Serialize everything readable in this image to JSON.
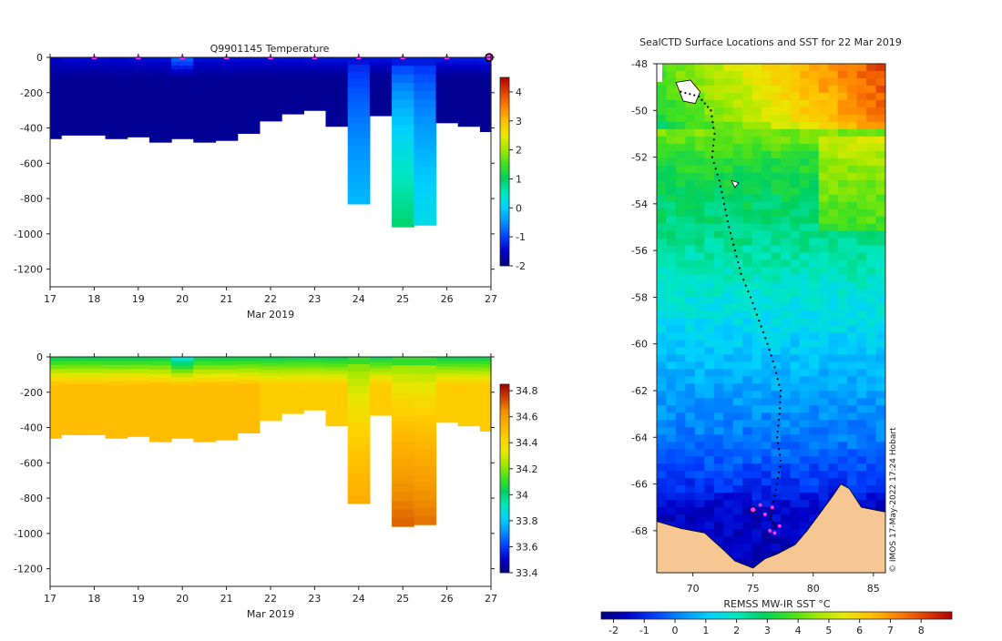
{
  "colors": {
    "land": "#f7c793",
    "no_data": "#ffffff",
    "track": "#000000",
    "highlight": "#ff33ff",
    "temp_colormap": [
      "#00007f",
      "#0000c8",
      "#0040ff",
      "#0090ff",
      "#00d0ff",
      "#00e8c0",
      "#00d060",
      "#40e020",
      "#a0e800",
      "#e8e800",
      "#ffc000",
      "#ff8000",
      "#e04000",
      "#b00000"
    ],
    "sal_colormap": [
      "#00007f",
      "#0000c8",
      "#0040ff",
      "#0090ff",
      "#00d0ff",
      "#00e8c0",
      "#00d060",
      "#40e020",
      "#a0e800",
      "#e8e800",
      "#ffd000",
      "#ffb000",
      "#f09000",
      "#d04000",
      "#a00000"
    ]
  },
  "chart_data": [
    {
      "id": "temperature-profile",
      "type": "heatmap",
      "title": "Q9901145  Temperature",
      "xlabel": "Mar 2019",
      "ylabel": "",
      "xlim": [
        17,
        27
      ],
      "ylim": [
        -1300,
        0
      ],
      "xticks": [
        "17",
        "18",
        "19",
        "20",
        "21",
        "22",
        "23",
        "24",
        "25",
        "26",
        "27"
      ],
      "yticks": [
        "0",
        "-200",
        "-400",
        "-600",
        "-800",
        "-1000",
        "-1200"
      ],
      "colorbar": {
        "min": -2,
        "max": 4.5,
        "ticks": [
          "-2",
          "-1",
          "0",
          "1",
          "2",
          "3",
          "4"
        ]
      },
      "surface_marker_days": [
        18,
        19,
        20,
        21,
        22,
        23,
        24,
        25,
        26,
        27
      ],
      "profiles": [
        {
          "day": 17.0,
          "depth": -460,
          "surf": -1.5,
          "deep": -1.85
        },
        {
          "day": 17.5,
          "depth": -440,
          "surf": -1.45,
          "deep": -1.85
        },
        {
          "day": 18.0,
          "depth": -440,
          "surf": -1.45,
          "deep": -1.85
        },
        {
          "day": 18.5,
          "depth": -460,
          "surf": -1.45,
          "deep": -1.85
        },
        {
          "day": 19.0,
          "depth": -450,
          "surf": -1.4,
          "deep": -1.85
        },
        {
          "day": 19.5,
          "depth": -480,
          "surf": -1.4,
          "deep": -1.85
        },
        {
          "day": 20.0,
          "depth": -460,
          "surf": -0.8,
          "deep": -1.85
        },
        {
          "day": 20.5,
          "depth": -480,
          "surf": -1.4,
          "deep": -1.85
        },
        {
          "day": 21.0,
          "depth": -470,
          "surf": -1.4,
          "deep": -1.85
        },
        {
          "day": 21.5,
          "depth": -430,
          "surf": -1.4,
          "deep": -1.85
        },
        {
          "day": 22.0,
          "depth": -360,
          "surf": -1.4,
          "deep": -1.85
        },
        {
          "day": 22.5,
          "depth": -320,
          "surf": -1.4,
          "deep": -1.85
        },
        {
          "day": 23.0,
          "depth": -300,
          "surf": -1.35,
          "deep": -1.85
        },
        {
          "day": 23.5,
          "depth": -390,
          "surf": -1.35,
          "deep": -1.85
        },
        {
          "day": 24.0,
          "depth": -830,
          "surf": -1.35,
          "deep": -0.2
        },
        {
          "day": 24.5,
          "depth": -330,
          "surf": -1.35,
          "deep": -1.85
        },
        {
          "day": 25.0,
          "depth": -960,
          "surf": -1.3,
          "deep": 0.9
        },
        {
          "day": 25.5,
          "depth": -950,
          "surf": -1.3,
          "deep": 0.2
        },
        {
          "day": 26.0,
          "depth": -370,
          "surf": -1.3,
          "deep": -1.85
        },
        {
          "day": 26.5,
          "depth": -390,
          "surf": -1.3,
          "deep": -1.85
        },
        {
          "day": 27.0,
          "depth": -420,
          "surf": -1.25,
          "deep": -1.85
        }
      ]
    },
    {
      "id": "salinity-profile",
      "type": "heatmap",
      "title": "",
      "xlabel": "Mar 2019",
      "ylabel": "",
      "xlim": [
        17,
        27
      ],
      "ylim": [
        -1300,
        0
      ],
      "xticks": [
        "17",
        "18",
        "19",
        "20",
        "21",
        "22",
        "23",
        "24",
        "25",
        "26",
        "27"
      ],
      "yticks": [
        "0",
        "-200",
        "-400",
        "-600",
        "-800",
        "-1000",
        "-1200"
      ],
      "colorbar": {
        "min": 33.4,
        "max": 34.85,
        "ticks": [
          "33.4",
          "33.6",
          "33.8",
          "34",
          "34.2",
          "34.4",
          "34.6",
          "34.8"
        ]
      },
      "profiles": [
        {
          "day": 17.0,
          "depth": -460,
          "surf": 34.05,
          "deep": 34.5
        },
        {
          "day": 17.5,
          "depth": -440,
          "surf": 34.05,
          "deep": 34.5
        },
        {
          "day": 18.0,
          "depth": -440,
          "surf": 34.05,
          "deep": 34.5
        },
        {
          "day": 18.5,
          "depth": -460,
          "surf": 34.05,
          "deep": 34.5
        },
        {
          "day": 19.0,
          "depth": -450,
          "surf": 34.05,
          "deep": 34.5
        },
        {
          "day": 19.5,
          "depth": -480,
          "surf": 34.05,
          "deep": 34.5
        },
        {
          "day": 20.0,
          "depth": -460,
          "surf": 33.9,
          "deep": 34.5
        },
        {
          "day": 20.5,
          "depth": -480,
          "surf": 34.05,
          "deep": 34.5
        },
        {
          "day": 21.0,
          "depth": -470,
          "surf": 34.05,
          "deep": 34.5
        },
        {
          "day": 21.5,
          "depth": -430,
          "surf": 34.05,
          "deep": 34.5
        },
        {
          "day": 22.0,
          "depth": -360,
          "surf": 34.05,
          "deep": 34.45
        },
        {
          "day": 22.5,
          "depth": -320,
          "surf": 34.05,
          "deep": 34.45
        },
        {
          "day": 23.0,
          "depth": -300,
          "surf": 34.05,
          "deep": 34.45
        },
        {
          "day": 23.5,
          "depth": -390,
          "surf": 34.05,
          "deep": 34.45
        },
        {
          "day": 24.0,
          "depth": -830,
          "surf": 34.1,
          "deep": 34.55
        },
        {
          "day": 24.5,
          "depth": -330,
          "surf": 34.05,
          "deep": 34.45
        },
        {
          "day": 25.0,
          "depth": -960,
          "surf": 34.1,
          "deep": 34.7
        },
        {
          "day": 25.5,
          "depth": -950,
          "surf": 34.1,
          "deep": 34.68
        },
        {
          "day": 26.0,
          "depth": -370,
          "surf": 34.05,
          "deep": 34.45
        },
        {
          "day": 26.5,
          "depth": -390,
          "surf": 34.05,
          "deep": 34.45
        },
        {
          "day": 27.0,
          "depth": -420,
          "surf": 34.05,
          "deep": 34.45
        }
      ]
    },
    {
      "id": "sst-map",
      "type": "heatmap",
      "title": "SealCTD Surface Locations and SST for 22 Mar 2019",
      "xlabel": "",
      "ylabel": "",
      "xlim": [
        67,
        86
      ],
      "ylim": [
        -69.8,
        -48
      ],
      "xticks": [
        "70",
        "75",
        "80",
        "85"
      ],
      "yticks": [
        "-48",
        "-50",
        "-52",
        "-54",
        "-56",
        "-58",
        "-60",
        "-62",
        "-64",
        "-66",
        "-68"
      ],
      "colorbar": {
        "label": "REMSS MW-IR SST °C",
        "min": -2.4,
        "max": 9,
        "ticks": [
          "-2",
          "-1",
          "0",
          "1",
          "2",
          "3",
          "4",
          "5",
          "6",
          "7",
          "8"
        ]
      },
      "credit": "© IMOS 17-May-2022 17:24 Hobart",
      "sst_by_latitude": [
        {
          "lat": -48,
          "sst": 5.5
        },
        {
          "lat": -50,
          "sst": 5.0
        },
        {
          "lat": -52,
          "sst": 3.5
        },
        {
          "lat": -54,
          "sst": 2.8
        },
        {
          "lat": -56,
          "sst": 2.3
        },
        {
          "lat": -58,
          "sst": 1.7
        },
        {
          "lat": -60,
          "sst": 1.1
        },
        {
          "lat": -62,
          "sst": 0.5
        },
        {
          "lat": -64,
          "sst": 0.0
        },
        {
          "lat": -66,
          "sst": -0.8
        },
        {
          "lat": -67,
          "sst": -1.5
        },
        {
          "lat": -69.8,
          "sst": -1.8
        }
      ],
      "track": [
        [
          69.0,
          -49.2
        ],
        [
          70.5,
          -49.4
        ],
        [
          71.5,
          -50.0
        ],
        [
          71.8,
          -51.0
        ],
        [
          71.6,
          -52.0
        ],
        [
          72.2,
          -53.0
        ],
        [
          72.6,
          -54.0
        ],
        [
          73.0,
          -55.0
        ],
        [
          73.5,
          -56.0
        ],
        [
          74.0,
          -57.0
        ],
        [
          74.8,
          -58.0
        ],
        [
          75.5,
          -59.0
        ],
        [
          76.2,
          -60.0
        ],
        [
          76.8,
          -61.0
        ],
        [
          77.3,
          -62.0
        ],
        [
          77.2,
          -63.0
        ],
        [
          77.0,
          -64.0
        ],
        [
          77.3,
          -65.0
        ],
        [
          77.0,
          -66.0
        ],
        [
          76.6,
          -67.0
        ],
        [
          76.5,
          -67.5
        ],
        [
          77.0,
          -68.0
        ]
      ],
      "highlight_points": [
        [
          75.0,
          -67.1
        ],
        [
          76.0,
          -67.3
        ],
        [
          76.4,
          -68.0
        ],
        [
          77.2,
          -67.8
        ],
        [
          76.8,
          -68.1
        ],
        [
          76.6,
          -67.0
        ],
        [
          75.6,
          -66.9
        ]
      ]
    }
  ]
}
